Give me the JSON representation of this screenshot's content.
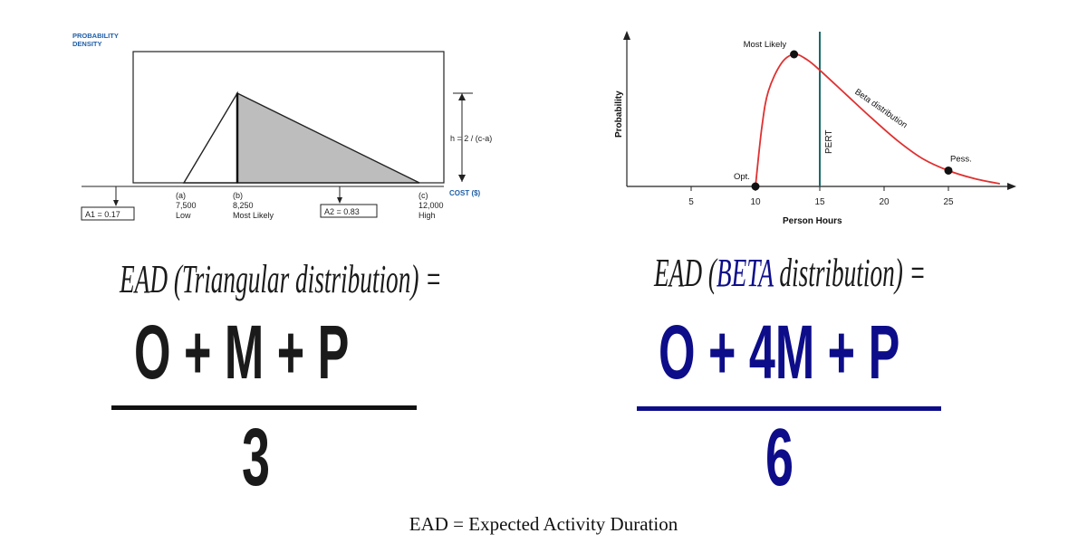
{
  "left_chart": {
    "ylabel": [
      "PROBABILITY",
      "DENSITY"
    ],
    "xlabel": "COST ($)",
    "height_label": "h = 2 / (c-a)",
    "points": [
      {
        "letter": "(a)",
        "value": "7,500",
        "name": "Low"
      },
      {
        "letter": "(b)",
        "value": "8,250",
        "name": "Most Likely"
      },
      {
        "letter": "(c)",
        "value": "12,000",
        "name": "High"
      }
    ],
    "area_left": "A1 = 0.17",
    "area_right": "A2 = 0.83",
    "accent_color": "#1f5fa8",
    "shade_color": "#bdbdbd"
  },
  "right_chart": {
    "xlabel": "Person Hours",
    "ylabel": "Probability",
    "xticks": [
      "5",
      "10",
      "15",
      "20",
      "25"
    ],
    "labels": {
      "most_likely": "Most Likely",
      "opt": "Opt.",
      "pess": "Pess.",
      "pert": "PERT",
      "beta": "Beta distribution"
    },
    "chart_data": {
      "type": "line",
      "x": [
        10,
        10.5,
        11,
        12,
        13,
        14,
        15,
        17,
        19,
        21,
        23,
        25,
        27,
        29
      ],
      "y": [
        0.0,
        0.45,
        0.72,
        0.93,
        1.0,
        0.96,
        0.88,
        0.7,
        0.52,
        0.35,
        0.21,
        0.12,
        0.06,
        0.02
      ],
      "marked_points": {
        "optimistic": 10,
        "most_likely": 13,
        "pessimistic": 25
      },
      "pert_line_x": 15,
      "xlim": [
        0,
        30
      ],
      "curve_color": "#e03030",
      "pert_color": "#1a6b6b"
    }
  },
  "triangular": {
    "heading": "EAD (Triangular distribution) =",
    "numerator": "O + M + P",
    "denominator": "3",
    "color": "#1a1a1a"
  },
  "beta": {
    "heading_prefix": "EAD (",
    "heading_highlight": "BETA",
    "heading_suffix": " distribution) =",
    "numerator": "O + 4M + P",
    "denominator": "6",
    "color": "#0d0d8a"
  },
  "footer": "EAD = Expected Activity Duration"
}
